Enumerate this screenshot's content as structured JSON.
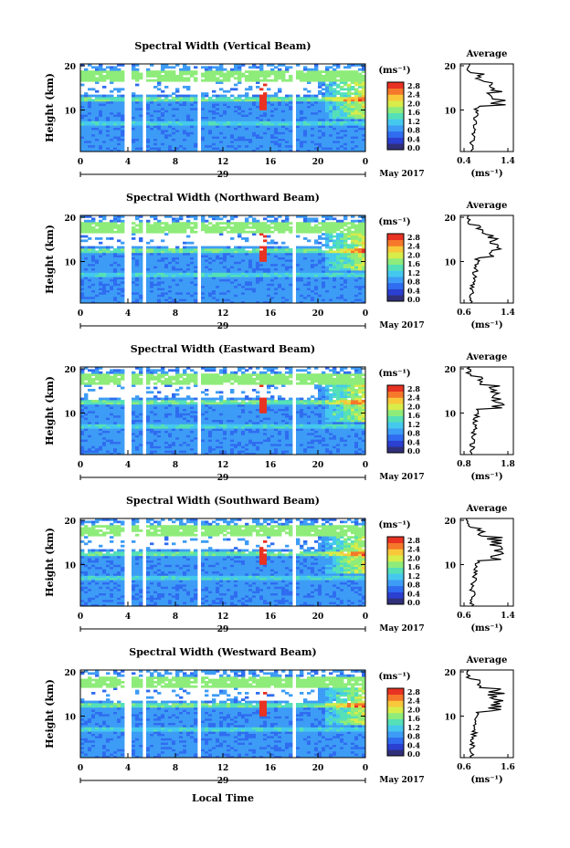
{
  "chart_data": [
    {
      "type": "heatmap",
      "title": "Spectral Width (Vertical Beam)",
      "ylabel": "Height (km)",
      "xticks": [
        "0",
        "4",
        "8",
        "12",
        "16",
        "20",
        "0"
      ],
      "yticks": [
        "20",
        "10"
      ],
      "date_label": "29",
      "month_label": "May 2017",
      "colorbar": {
        "unit": "(ms⁻¹)",
        "ticks": [
          "2.8",
          "2.4",
          "2.0",
          "1.6",
          "1.2",
          "0.8",
          "0.4",
          "0.0"
        ]
      },
      "average": {
        "title": "Average",
        "xticks": [
          "0.4",
          "1.4"
        ],
        "yticks": [
          "20",
          "10"
        ],
        "xlabel": "(ms⁻¹)",
        "xlim": [
          0.4,
          1.4
        ],
        "ylim": [
          1,
          20
        ]
      }
    },
    {
      "type": "heatmap",
      "title": "Spectral Width (Northward Beam)",
      "ylabel": "Height (km)",
      "xticks": [
        "0",
        "4",
        "8",
        "12",
        "16",
        "20",
        "0"
      ],
      "yticks": [
        "20",
        "10"
      ],
      "date_label": "29",
      "month_label": "May 2017",
      "colorbar": {
        "unit": "(ms⁻¹)",
        "ticks": [
          "2.8",
          "2.4",
          "2.0",
          "1.6",
          "1.2",
          "0.8",
          "0.4",
          "0.0"
        ]
      },
      "average": {
        "title": "Average",
        "xticks": [
          "0.6",
          "1.4"
        ],
        "yticks": [
          "20",
          "10"
        ],
        "xlabel": "(ms⁻¹)",
        "xlim": [
          0.6,
          1.4
        ],
        "ylim": [
          1,
          20
        ]
      }
    },
    {
      "type": "heatmap",
      "title": "Spectral Width (Eastward Beam)",
      "ylabel": "Height (km)",
      "xticks": [
        "0",
        "4",
        "8",
        "12",
        "16",
        "20",
        "0"
      ],
      "yticks": [
        "20",
        "10"
      ],
      "date_label": "29",
      "month_label": "May 2017",
      "colorbar": {
        "unit": "(ms⁻¹)",
        "ticks": [
          "2.8",
          "2.4",
          "2.0",
          "1.6",
          "1.2",
          "0.8",
          "0.4",
          "0.0"
        ]
      },
      "average": {
        "title": "Average",
        "xticks": [
          "0.8",
          "1.8"
        ],
        "yticks": [
          "20",
          "10"
        ],
        "xlabel": "(ms⁻¹)",
        "xlim": [
          0.8,
          1.8
        ],
        "ylim": [
          1,
          20
        ]
      }
    },
    {
      "type": "heatmap",
      "title": "Spectral Width (Southward Beam)",
      "ylabel": "Height (km)",
      "xticks": [
        "0",
        "4",
        "8",
        "12",
        "16",
        "20",
        "0"
      ],
      "yticks": [
        "20",
        "10"
      ],
      "date_label": "29",
      "month_label": "May 2017",
      "colorbar": {
        "unit": "(ms⁻¹)",
        "ticks": [
          "2.8",
          "2.4",
          "2.0",
          "1.6",
          "1.2",
          "0.8",
          "0.4",
          "0.0"
        ]
      },
      "average": {
        "title": "Average",
        "xticks": [
          "0.6",
          "1.4"
        ],
        "yticks": [
          "20",
          "10"
        ],
        "xlabel": "(ms⁻¹)",
        "xlim": [
          0.6,
          1.4
        ],
        "ylim": [
          1,
          20
        ]
      }
    },
    {
      "type": "heatmap",
      "title": "Spectral Width (Westward Beam)",
      "ylabel": "Height (km)",
      "xticks": [
        "0",
        "4",
        "8",
        "12",
        "16",
        "20",
        "0"
      ],
      "yticks": [
        "20",
        "10"
      ],
      "date_label": "29",
      "month_label": "May 2017",
      "colorbar": {
        "unit": "(ms⁻¹)",
        "ticks": [
          "2.8",
          "2.4",
          "2.0",
          "1.6",
          "1.2",
          "0.8",
          "0.4",
          "0.0"
        ]
      },
      "average": {
        "title": "Average",
        "xticks": [
          "0.6",
          "1.6"
        ],
        "yticks": [
          "20",
          "10"
        ],
        "xlabel": "(ms⁻¹)",
        "xlim": [
          0.6,
          1.6
        ],
        "ylim": [
          1,
          20
        ]
      }
    }
  ],
  "xlabel": "Local Time",
  "colors": {
    "scale": [
      "#30307a",
      "#2b3fd0",
      "#2f6cf0",
      "#3d9cf5",
      "#45c8ee",
      "#55e0b8",
      "#8eec7a",
      "#d8ec4a",
      "#f8c83a",
      "#f6782a",
      "#e83222"
    ],
    "gap": "#ffffff"
  }
}
